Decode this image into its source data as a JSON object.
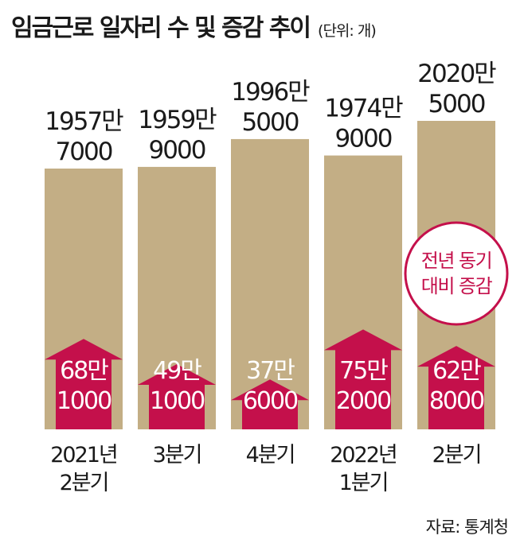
{
  "chart_data": {
    "type": "bar",
    "title": "임금근로 일자리 수 및 증감 추이",
    "unit": "(단위: 개)",
    "categories": [
      [
        "2021년",
        "2분기"
      ],
      [
        "3분기"
      ],
      [
        "4분기"
      ],
      [
        "2022년",
        "1분기"
      ],
      [
        "2분기"
      ]
    ],
    "series": [
      {
        "values": [
          19577000,
          19599000,
          19965000,
          19749000,
          20205000
        ],
        "labels": [
          [
            "1957만",
            "7000"
          ],
          [
            "1959만",
            "9000"
          ],
          [
            "1996만",
            "5000"
          ],
          [
            "1974만",
            "9000"
          ],
          [
            "2020만",
            "5000"
          ]
        ]
      },
      {
        "name": "전년 동기 대비 증감",
        "values": [
          681000,
          491000,
          376000,
          752000,
          628000
        ],
        "labels": [
          [
            "68만",
            "1000"
          ],
          [
            "49만",
            "1000"
          ],
          [
            "37만",
            "6000"
          ],
          [
            "75만",
            "2000"
          ],
          [
            "62만",
            "8000"
          ]
        ]
      }
    ],
    "annotation": [
      "전년 동기",
      "대비 증감"
    ],
    "source": "자료: 통계청",
    "colors": {
      "bar": "#c3ae85",
      "arrow": "#c4104b",
      "text": "#1a1a1a",
      "arrow_text": "#ffffff"
    }
  }
}
